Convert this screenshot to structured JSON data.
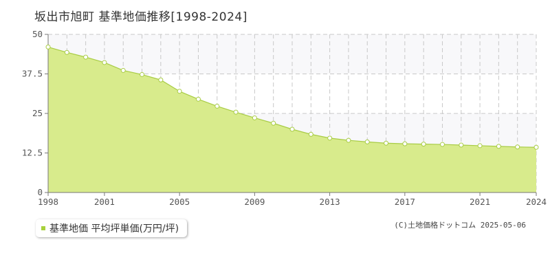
{
  "title": "坂出市旭町 基準地価推移[1998-2024]",
  "legend": {
    "label": "基準地価 平均坪単価(万円/坪)"
  },
  "copyright": "(C)土地価格ドットコム 2025-05-06",
  "colors": {
    "fill": "#d8eb8c",
    "line": "#a8cc44",
    "marker_fill": "#ffffff",
    "legend_swatch": "#a8d13c",
    "grid": "#c8c8c8",
    "band": "#f8f8fa"
  },
  "chart_data": {
    "type": "area",
    "x": [
      1998,
      1999,
      2000,
      2001,
      2002,
      2003,
      2004,
      2005,
      2006,
      2007,
      2008,
      2009,
      2010,
      2011,
      2012,
      2013,
      2014,
      2015,
      2016,
      2017,
      2018,
      2019,
      2020,
      2021,
      2022,
      2023,
      2024
    ],
    "series": [
      {
        "name": "基準地価 平均坪単価(万円/坪)",
        "values": [
          46.0,
          44.3,
          42.8,
          41.1,
          38.6,
          37.3,
          35.6,
          32.0,
          29.5,
          27.3,
          25.4,
          23.6,
          21.9,
          20.0,
          18.4,
          17.2,
          16.5,
          16.0,
          15.6,
          15.4,
          15.3,
          15.2,
          15.0,
          14.8,
          14.6,
          14.4,
          14.3
        ]
      }
    ],
    "x_ticks": [
      "1998",
      "2001",
      "2005",
      "2009",
      "2013",
      "2017",
      "2021",
      "2024"
    ],
    "y_ticks": [
      "0",
      "12.5",
      "25",
      "37.5",
      "50"
    ],
    "xlim": [
      1998,
      2024
    ],
    "ylim": [
      0,
      50
    ],
    "grid": true
  }
}
